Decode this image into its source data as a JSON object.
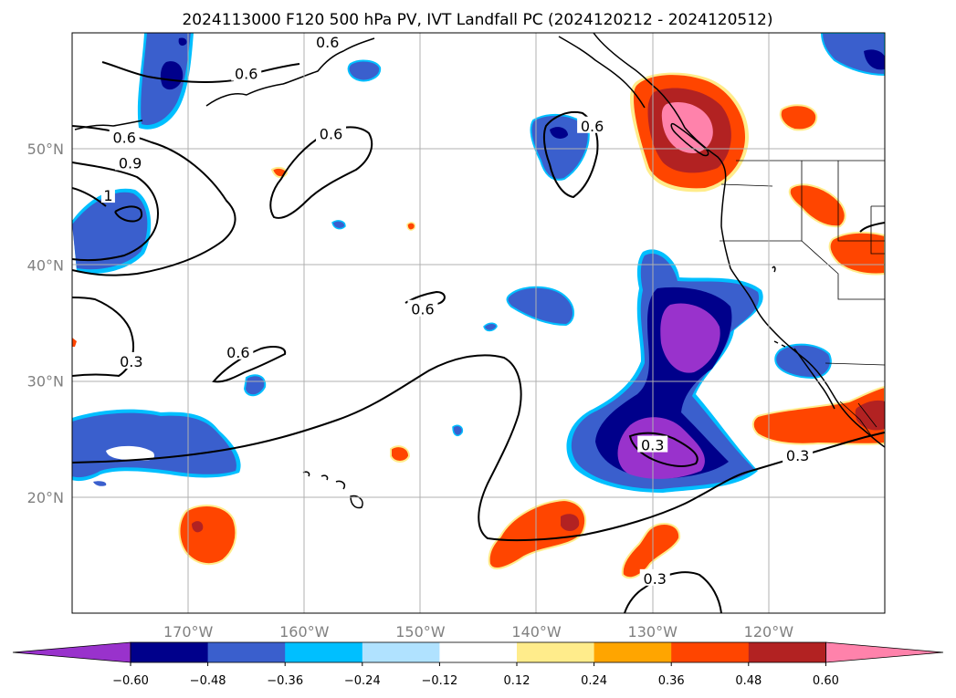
{
  "title": "2024113000 F120 500 hPa PV, IVT Landfall PC (2024120212 - 2024120512)",
  "map": {
    "lon_range": [
      -180,
      -110
    ],
    "lat_range": [
      10,
      60
    ],
    "lon_ticks": [
      {
        "lon": -170,
        "label": "170°W"
      },
      {
        "lon": -160,
        "label": "160°W"
      },
      {
        "lon": -150,
        "label": "150°W"
      },
      {
        "lon": -140,
        "label": "140°W"
      },
      {
        "lon": -130,
        "label": "130°W"
      },
      {
        "lon": -120,
        "label": "120°W"
      }
    ],
    "lat_ticks": [
      {
        "lat": 20,
        "label": "20°N"
      },
      {
        "lat": 30,
        "label": "30°N"
      },
      {
        "lat": 40,
        "label": "40°N"
      },
      {
        "lat": 50,
        "label": "50°N"
      }
    ],
    "grid": true
  },
  "contour_labels": [
    {
      "text": "0.6",
      "lon": -175.5,
      "lat": 51.0
    },
    {
      "text": "0.9",
      "lon": -175.0,
      "lat": 48.8
    },
    {
      "text": "1",
      "lon": -176.9,
      "lat": 46.0
    },
    {
      "text": "0.6",
      "lon": -165.0,
      "lat": 56.5
    },
    {
      "text": "0.6",
      "lon": -157.7,
      "lat": 51.3
    },
    {
      "text": "0.6",
      "lon": -158.0,
      "lat": 59.2
    },
    {
      "text": "0.6",
      "lon": -135.2,
      "lat": 52.0
    },
    {
      "text": "0.6",
      "lon": -149.8,
      "lat": 36.2
    },
    {
      "text": "0.6",
      "lon": -165.7,
      "lat": 32.5
    },
    {
      "text": "0.3",
      "lon": -174.9,
      "lat": 31.7
    },
    {
      "text": "0.3",
      "lon": -130.0,
      "lat": 24.5
    },
    {
      "text": "0.3",
      "lon": -117.5,
      "lat": 23.6
    },
    {
      "text": "0.3",
      "lon": -129.8,
      "lat": 13.0
    }
  ],
  "colorbar": {
    "colors": [
      "#9932cc",
      "#00008b",
      "#3a5fcd",
      "#00bfff",
      "#b0e2ff",
      "#ffffff",
      "#ffec8b",
      "#ffa500",
      "#ff4500",
      "#b22222",
      "#ff82ab"
    ],
    "ticks": [
      "−0.60",
      "−0.48",
      "−0.36",
      "−0.24",
      "−0.12",
      "0.12",
      "0.24",
      "0.36",
      "0.48",
      "0.60"
    ]
  },
  "pc_colors": {
    "neg_4": "#9932cc",
    "neg_3": "#00008b",
    "neg_2": "#3a5fcd",
    "neg_1": "#00bfff",
    "pos_1": "#ffec8b",
    "pos_2": "#ffa500",
    "pos_3": "#ff4500",
    "pos_4": "#b22222",
    "pos_5": "#ff82ab"
  }
}
